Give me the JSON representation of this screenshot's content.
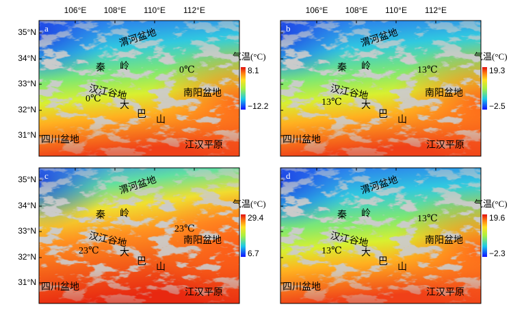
{
  "x_ticks": [
    "106°E",
    "108°E",
    "110°E",
    "112°E"
  ],
  "y_ticks": [
    "35°N",
    "34°N",
    "33°N",
    "32°N",
    "31°N"
  ],
  "place_names": [
    "渭河盆地",
    "秦",
    "岭",
    "汉江谷地",
    "南阳盆地",
    "大",
    "巴",
    "山",
    "四川盆地",
    "江汉平原"
  ],
  "panels": [
    {
      "label": "a",
      "isotherms": [
        "0℃",
        "0℃"
      ],
      "colorbar": {
        "title": "气温(°C)",
        "max": "8.1",
        "min": "−12.2"
      }
    },
    {
      "label": "b",
      "isotherms": [
        "13℃",
        "13℃"
      ],
      "colorbar": {
        "title": "气温(°C)",
        "max": "19.3",
        "min": "−2.5"
      }
    },
    {
      "label": "c",
      "isotherms": [
        "23℃",
        "23℃"
      ],
      "colorbar": {
        "title": "气温(°C)",
        "max": "29.4",
        "min": "6.7"
      }
    },
    {
      "label": "d",
      "isotherms": [
        "13℃",
        "13℃"
      ],
      "colorbar": {
        "title": "气温(°C)",
        "max": "19.6",
        "min": "−2.3"
      }
    }
  ]
}
